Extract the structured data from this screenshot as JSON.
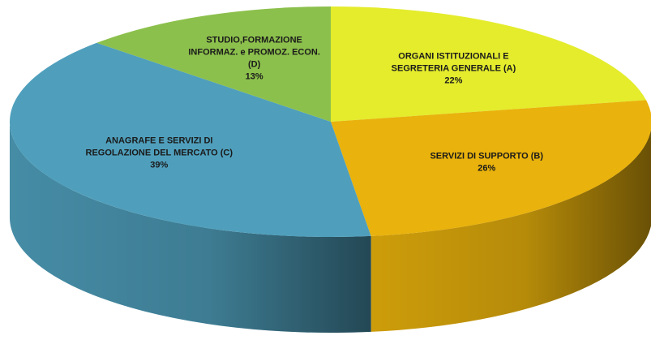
{
  "chart_data": {
    "type": "pie",
    "categories": [
      [
        "ORGANI ISTITUZIONALI E",
        "SEGRETERIA GENERALE (A)"
      ],
      [
        "SERVIZI DI SUPPORTO (B)"
      ],
      [
        "ANAGRAFE E SERVIZI DI",
        "REGOLAZIONE DEL MERCATO (C)"
      ],
      [
        "STUDIO,FORMAZIONE",
        "INFORMAZ. e PROMOZ. ECON.",
        "(D)"
      ]
    ],
    "values": [
      22,
      26,
      39,
      13
    ],
    "value_labels": [
      "22%",
      "26%",
      "39%",
      "13%"
    ],
    "colors": [
      "#e4ec2c",
      "#e9b20c",
      "#4f9fbc",
      "#8cc04c"
    ]
  }
}
